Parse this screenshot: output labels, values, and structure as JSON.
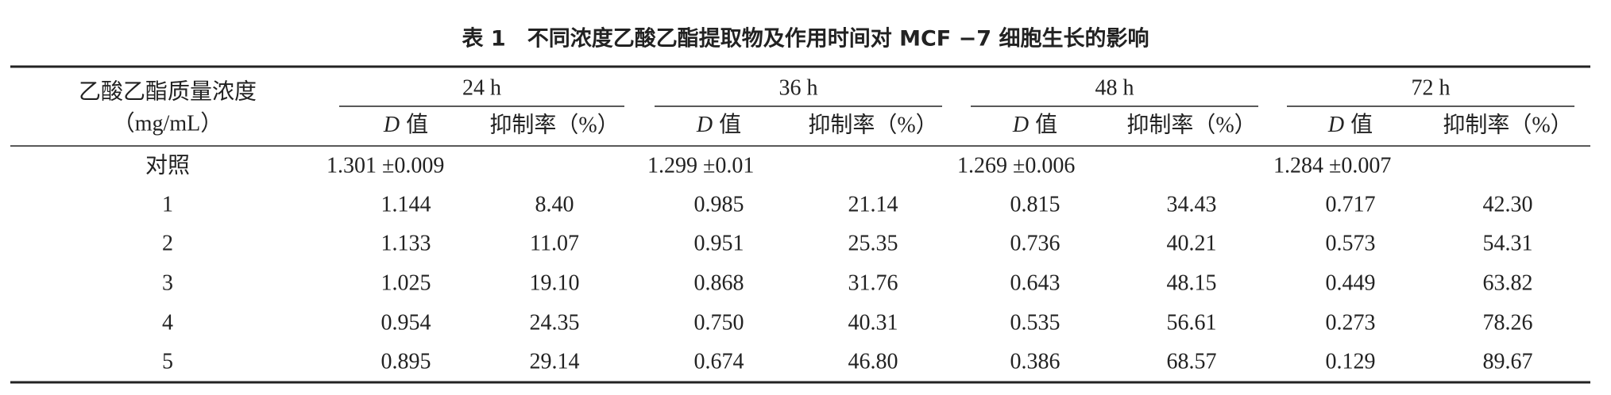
{
  "table": {
    "title": "表 1　不同浓度乙酸乙酯提取物及作用时间对 MCF −7 细胞生长的影响",
    "corner": [
      "乙酸乙酯质量浓度",
      "（mg/mL）"
    ],
    "groups": [
      "24 h",
      "36 h",
      "48 h",
      "72 h"
    ],
    "subheader": {
      "d_symbol": "D",
      "d_text": "值",
      "inhibition": "抑制率（%）"
    },
    "control": {
      "label": "对照",
      "values": [
        "1.301 ±0.009",
        "1.299 ±0.01",
        "1.269 ±0.006",
        "1.284 ±0.007"
      ]
    },
    "rows": [
      [
        "1",
        "1.144",
        "8.40",
        "0.985",
        "21.14",
        "0.815",
        "34.43",
        "0.717",
        "42.30"
      ],
      [
        "2",
        "1.133",
        "11.07",
        "0.951",
        "25.35",
        "0.736",
        "40.21",
        "0.573",
        "54.31"
      ],
      [
        "3",
        "1.025",
        "19.10",
        "0.868",
        "31.76",
        "0.643",
        "48.15",
        "0.449",
        "63.82"
      ],
      [
        "4",
        "0.954",
        "24.35",
        "0.750",
        "40.31",
        "0.535",
        "56.61",
        "0.273",
        "78.26"
      ],
      [
        "5",
        "0.895",
        "29.14",
        "0.674",
        "46.80",
        "0.386",
        "68.57",
        "0.129",
        "89.67"
      ]
    ]
  }
}
